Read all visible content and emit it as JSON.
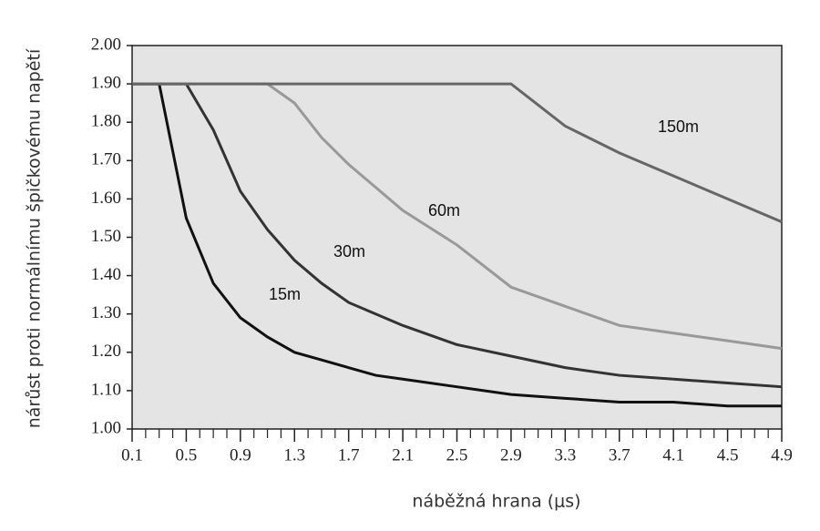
{
  "chart_data": {
    "type": "line",
    "xlabel": "náběžná hrana (μs)",
    "ylabel": "nárůst proti normálnímu špičkovému napětí",
    "x": [
      0.1,
      0.3,
      0.5,
      0.7,
      0.9,
      1.1,
      1.3,
      1.5,
      1.7,
      1.9,
      2.1,
      2.5,
      2.9,
      3.3,
      3.7,
      4.1,
      4.5,
      4.9
    ],
    "series": [
      {
        "name": "15m",
        "color": "#111111",
        "values": [
          1.9,
          1.9,
          1.55,
          1.38,
          1.29,
          1.24,
          1.2,
          1.18,
          1.16,
          1.14,
          1.13,
          1.11,
          1.09,
          1.08,
          1.07,
          1.07,
          1.06,
          1.06
        ]
      },
      {
        "name": "30m",
        "color": "#333333",
        "values": [
          1.9,
          1.9,
          1.9,
          1.78,
          1.62,
          1.52,
          1.44,
          1.38,
          1.33,
          1.3,
          1.27,
          1.22,
          1.19,
          1.16,
          1.14,
          1.13,
          1.12,
          1.11
        ]
      },
      {
        "name": "60m",
        "color": "#999999",
        "values": [
          1.9,
          1.9,
          1.9,
          1.9,
          1.9,
          1.9,
          1.85,
          1.76,
          1.69,
          1.63,
          1.57,
          1.48,
          1.37,
          1.32,
          1.27,
          1.25,
          1.23,
          1.21
        ]
      },
      {
        "name": "150m",
        "color": "#666666",
        "values": [
          1.9,
          1.9,
          1.9,
          1.9,
          1.9,
          1.9,
          1.9,
          1.9,
          1.9,
          1.9,
          1.9,
          1.9,
          1.9,
          1.79,
          1.72,
          1.66,
          1.6,
          1.54
        ]
      }
    ],
    "xlim": [
      0.1,
      4.9
    ],
    "xticks": [
      0.1,
      0.5,
      0.9,
      1.3,
      1.7,
      2.1,
      2.5,
      2.9,
      3.3,
      3.7,
      4.1,
      4.5,
      4.9
    ],
    "ylim": [
      1,
      2
    ],
    "yticks": [
      {
        "value": 1,
        "label": "1.00"
      },
      {
        "value": 1.1,
        "label": "1.10"
      },
      {
        "value": 1.2,
        "label": "1.20"
      },
      {
        "value": 1.3,
        "label": "1.30"
      },
      {
        "value": 1.4,
        "label": "1.40"
      },
      {
        "value": 1.5,
        "label": "1.50"
      },
      {
        "value": 1.6,
        "label": "1.60"
      },
      {
        "value": 1.7,
        "label": "1.70"
      },
      {
        "value": 1.8,
        "label": "1.80"
      },
      {
        "value": 1.9,
        "label": "1.90"
      },
      {
        "value": 2,
        "label": "2.00"
      }
    ],
    "background": "#e4e4e4"
  }
}
